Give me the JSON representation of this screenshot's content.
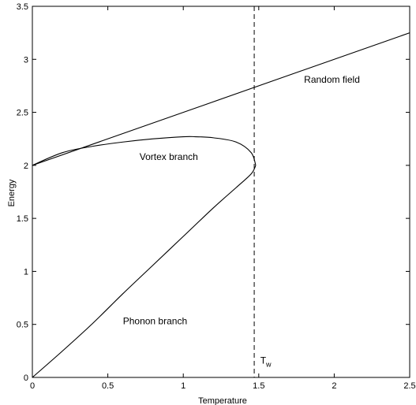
{
  "chart_data": {
    "type": "line",
    "title": "",
    "xlabel": "Temperature",
    "ylabel": "Energy",
    "xlim": [
      0,
      2.5
    ],
    "ylim": [
      0,
      3.5
    ],
    "xticks": [
      "0",
      "0.5",
      "1",
      "1.5",
      "2",
      "2.5"
    ],
    "yticks": [
      "0",
      "0.5",
      "1",
      "1.5",
      "2",
      "2.5",
      "3",
      "3.5"
    ],
    "grid": false,
    "legend": "none",
    "line_color": "#000000",
    "series": [
      {
        "label": "Random field",
        "x": [
          0,
          2.5
        ],
        "y": [
          2.0,
          3.25
        ]
      },
      {
        "label": "Vortex branch",
        "x": [
          0,
          0.2,
          0.4,
          0.6,
          0.8,
          1.0,
          1.08,
          1.2,
          1.35,
          1.45,
          1.48
        ],
        "y": [
          2.0,
          2.12,
          2.18,
          2.22,
          2.25,
          2.27,
          2.27,
          2.26,
          2.22,
          2.12,
          2.0
        ]
      },
      {
        "label": "Phonon branch",
        "x": [
          0,
          0.2,
          0.4,
          0.6,
          0.8,
          1.0,
          1.2,
          1.35,
          1.45,
          1.48
        ],
        "y": [
          0,
          0.25,
          0.51,
          0.79,
          1.06,
          1.33,
          1.6,
          1.79,
          1.92,
          2.0
        ]
      }
    ],
    "annotations": [
      {
        "text": "Random field",
        "x": 1.8,
        "y": 2.78
      },
      {
        "text": "Vortex branch",
        "x": 0.71,
        "y": 2.05
      },
      {
        "text": "Phonon branch",
        "x": 0.6,
        "y": 0.5
      },
      {
        "text": "T",
        "subscript": "w",
        "x": 1.51,
        "y": 0.13
      }
    ],
    "vline": {
      "x": 1.47,
      "style": "dashed"
    }
  }
}
